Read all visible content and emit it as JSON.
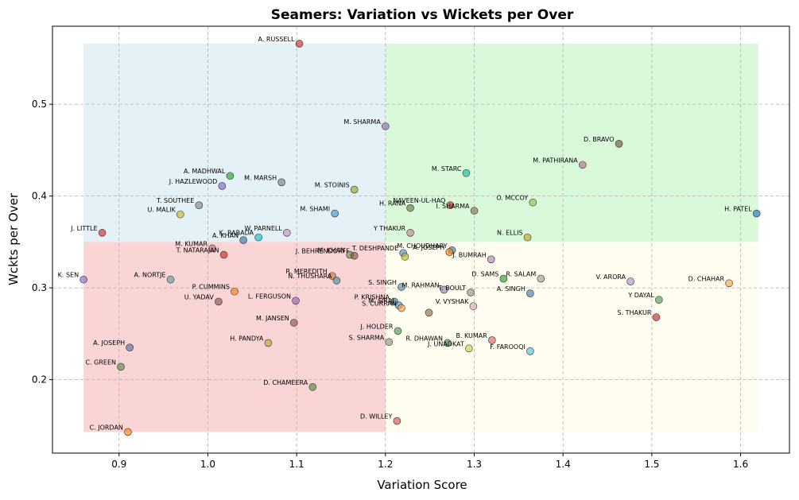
{
  "chart_data": {
    "type": "scatter",
    "title": "Seamers: Variation vs Wickets per Over",
    "xlabel": "Variation Score",
    "ylabel": "Wckts per Over",
    "xlim": [
      0.825,
      1.655
    ],
    "ylim": [
      0.12,
      0.585
    ],
    "xticks": [
      0.9,
      1.0,
      1.1,
      1.2,
      1.3,
      1.4,
      1.5,
      1.6
    ],
    "yticks": [
      0.2,
      0.3,
      0.4,
      0.5
    ],
    "grid": true,
    "quadrants": [
      {
        "x0": 0.86,
        "x1": 1.2,
        "y0": 0.35,
        "y1": 0.566,
        "color": "#add8e6"
      },
      {
        "x0": 1.2,
        "x1": 1.62,
        "y0": 0.35,
        "y1": 0.566,
        "color": "#90ee90"
      },
      {
        "x0": 0.86,
        "x1": 1.2,
        "y0": 0.143,
        "y1": 0.35,
        "color": "#f08080"
      },
      {
        "x0": 1.2,
        "x1": 1.62,
        "y0": 0.143,
        "y1": 0.35,
        "color": "#fffacd"
      }
    ],
    "points": [
      {
        "label": "A. RUSSELL",
        "x": 1.103,
        "y": 0.566,
        "color": "#d62728"
      },
      {
        "label": "M. SHARMA",
        "x": 1.2,
        "y": 0.476,
        "color": "#9467bd"
      },
      {
        "label": "D. BRAVO",
        "x": 1.463,
        "y": 0.457,
        "color": "#6b5b3b"
      },
      {
        "label": "M. PATHIRANA",
        "x": 1.422,
        "y": 0.434,
        "color": "#b07090"
      },
      {
        "label": "M. STARC",
        "x": 1.291,
        "y": 0.425,
        "color": "#1abc9c"
      },
      {
        "label": "A. MADHWAL",
        "x": 1.025,
        "y": 0.422,
        "color": "#2ca02c"
      },
      {
        "label": "M. MARSH",
        "x": 1.083,
        "y": 0.415,
        "color": "#7f7f7f"
      },
      {
        "label": "J. HAZLEWOOD",
        "x": 1.016,
        "y": 0.411,
        "color": "#7b68c6"
      },
      {
        "label": "M. STOINIS",
        "x": 1.165,
        "y": 0.407,
        "color": "#9aa635"
      },
      {
        "label": "O. MCCOY",
        "x": 1.366,
        "y": 0.393,
        "color": "#8bc34a"
      },
      {
        "label": "T. SOUTHEE",
        "x": 0.99,
        "y": 0.39,
        "color": "#7f8c7f"
      },
      {
        "label": "NAVEEN-UL-HAQ",
        "x": 1.273,
        "y": 0.39,
        "color": "#d62728"
      },
      {
        "label": "H. RANA",
        "x": 1.228,
        "y": 0.387,
        "color": "#6b7f3b"
      },
      {
        "label": "I. SHARMA",
        "x": 1.3,
        "y": 0.384,
        "color": "#7b7b4b"
      },
      {
        "label": "H. PATEL",
        "x": 1.618,
        "y": 0.381,
        "color": "#1f77b4"
      },
      {
        "label": "M. SHAMI",
        "x": 1.143,
        "y": 0.381,
        "color": "#4a90c9"
      },
      {
        "label": "U. MALIK",
        "x": 0.969,
        "y": 0.38,
        "color": "#bcbd22"
      },
      {
        "label": "J. LITTLE",
        "x": 0.881,
        "y": 0.36,
        "color": "#d62728"
      },
      {
        "label": "Y THAKUR",
        "x": 1.228,
        "y": 0.36,
        "color": "#c08890"
      },
      {
        "label": "W. PARNELL",
        "x": 1.089,
        "y": 0.36,
        "color": "#c090d0"
      },
      {
        "label": "K. RABADA",
        "x": 1.057,
        "y": 0.355,
        "color": "#17becf"
      },
      {
        "label": "N. ELLIS",
        "x": 1.36,
        "y": 0.355,
        "color": "#c9a227"
      },
      {
        "label": "A. KHAN",
        "x": 1.04,
        "y": 0.352,
        "color": "#3f6fa0"
      },
      {
        "label": "M. KUMAR",
        "x": 1.005,
        "y": 0.343,
        "color": "#c07080"
      },
      {
        "label": "M. CHOUDHARY",
        "x": 1.275,
        "y": 0.341,
        "color": "#4a7fa8"
      },
      {
        "label": "A. JOSEPH",
        "x": 1.272,
        "y": 0.339,
        "color": "#ff7f0e"
      },
      {
        "label": "T. DESHPANDE",
        "x": 1.22,
        "y": 0.338,
        "color": "#4a90c9"
      },
      {
        "label": "T. NATARAJAN",
        "x": 1.018,
        "y": 0.336,
        "color": "#d62728"
      },
      {
        "label": "M. KHAN",
        "x": 1.16,
        "y": 0.336,
        "color": "#6b8f3b"
      },
      {
        "label": "J. BEHRENDORFF",
        "x": 1.165,
        "y": 0.335,
        "color": "#8c564b"
      },
      {
        "label": "J. BUMRAH",
        "x": 1.319,
        "y": 0.331,
        "color": "#a983b0"
      },
      {
        "label": "",
        "x": 1.222,
        "y": 0.334,
        "color": "#bcbd22"
      },
      {
        "label": "K. SEN",
        "x": 0.86,
        "y": 0.309,
        "color": "#9467bd"
      },
      {
        "label": "A. NORTJE",
        "x": 0.958,
        "y": 0.309,
        "color": "#5a9fb0"
      },
      {
        "label": "R. MEREDITH",
        "x": 1.14,
        "y": 0.313,
        "color": "#d9703a"
      },
      {
        "label": "N. THUSHARA",
        "x": 1.145,
        "y": 0.308,
        "color": "#4a8fa0"
      },
      {
        "label": "D. SAMS",
        "x": 1.333,
        "y": 0.31,
        "color": "#2ca02c"
      },
      {
        "label": "R. SALAM",
        "x": 1.375,
        "y": 0.31,
        "color": "#9f9f8f"
      },
      {
        "label": "V. ARORA",
        "x": 1.476,
        "y": 0.307,
        "color": "#b090d0"
      },
      {
        "label": "D. CHAHAR",
        "x": 1.587,
        "y": 0.305,
        "color": "#ff9f4a"
      },
      {
        "label": "S. SINGH",
        "x": 1.218,
        "y": 0.301,
        "color": "#4a8fb0"
      },
      {
        "label": "M. RAHMAN",
        "x": 1.266,
        "y": 0.298,
        "color": "#a080c0"
      },
      {
        "label": "T. BOULT",
        "x": 1.296,
        "y": 0.295,
        "color": "#8f8f7f"
      },
      {
        "label": "A. SINGH",
        "x": 1.363,
        "y": 0.294,
        "color": "#3f7fb0"
      },
      {
        "label": "P. CUMMINS",
        "x": 1.03,
        "y": 0.296,
        "color": "#ff7f0e"
      },
      {
        "label": "Y DAYAL",
        "x": 1.508,
        "y": 0.287,
        "color": "#4aa04a"
      },
      {
        "label": "U. YADAV",
        "x": 1.012,
        "y": 0.285,
        "color": "#8c564b"
      },
      {
        "label": "L. FERGUSON",
        "x": 1.099,
        "y": 0.286,
        "color": "#9467bd"
      },
      {
        "label": "P. KRISHNA",
        "x": 1.21,
        "y": 0.285,
        "color": "#2f6f9f"
      },
      {
        "label": "M. SIRAJ",
        "x": 1.215,
        "y": 0.281,
        "color": "#5a8fb0"
      },
      {
        "label": "S. CURRAN",
        "x": 1.218,
        "y": 0.278,
        "color": "#ff9f4a"
      },
      {
        "label": "V. VYSHAK",
        "x": 1.299,
        "y": 0.28,
        "color": "#e0a0c0"
      },
      {
        "label": "",
        "x": 1.249,
        "y": 0.273,
        "color": "#8c6f4b"
      },
      {
        "label": "S. THAKUR",
        "x": 1.505,
        "y": 0.268,
        "color": "#d62728"
      },
      {
        "label": "M. JANSEN",
        "x": 1.097,
        "y": 0.262,
        "color": "#8c564b"
      },
      {
        "label": "J. HOLDER",
        "x": 1.214,
        "y": 0.253,
        "color": "#4aa04a"
      },
      {
        "label": "B. KUMAR",
        "x": 1.32,
        "y": 0.243,
        "color": "#e06060"
      },
      {
        "label": "S. SHARMA",
        "x": 1.204,
        "y": 0.241,
        "color": "#9f8f7f"
      },
      {
        "label": "R. DHAWAN",
        "x": 1.27,
        "y": 0.24,
        "color": "#4a8f4a"
      },
      {
        "label": "H. PANDYA",
        "x": 1.068,
        "y": 0.24,
        "color": "#c9a227"
      },
      {
        "label": "A. JOSEPH",
        "x": 0.912,
        "y": 0.235,
        "color": "#5a6fa0"
      },
      {
        "label": "J. UNADKAT",
        "x": 1.294,
        "y": 0.234,
        "color": "#c8d050"
      },
      {
        "label": "F. FAROOQI",
        "x": 1.363,
        "y": 0.231,
        "color": "#48c8d8"
      },
      {
        "label": "C. GREEN",
        "x": 0.902,
        "y": 0.214,
        "color": "#5a8f4a"
      },
      {
        "label": "D. CHAMEERA",
        "x": 1.118,
        "y": 0.192,
        "color": "#4a8f3b"
      },
      {
        "label": "D. WILLEY",
        "x": 1.213,
        "y": 0.155,
        "color": "#d65050"
      },
      {
        "label": "C. JORDAN",
        "x": 0.91,
        "y": 0.143,
        "color": "#ff7f0e"
      }
    ]
  }
}
